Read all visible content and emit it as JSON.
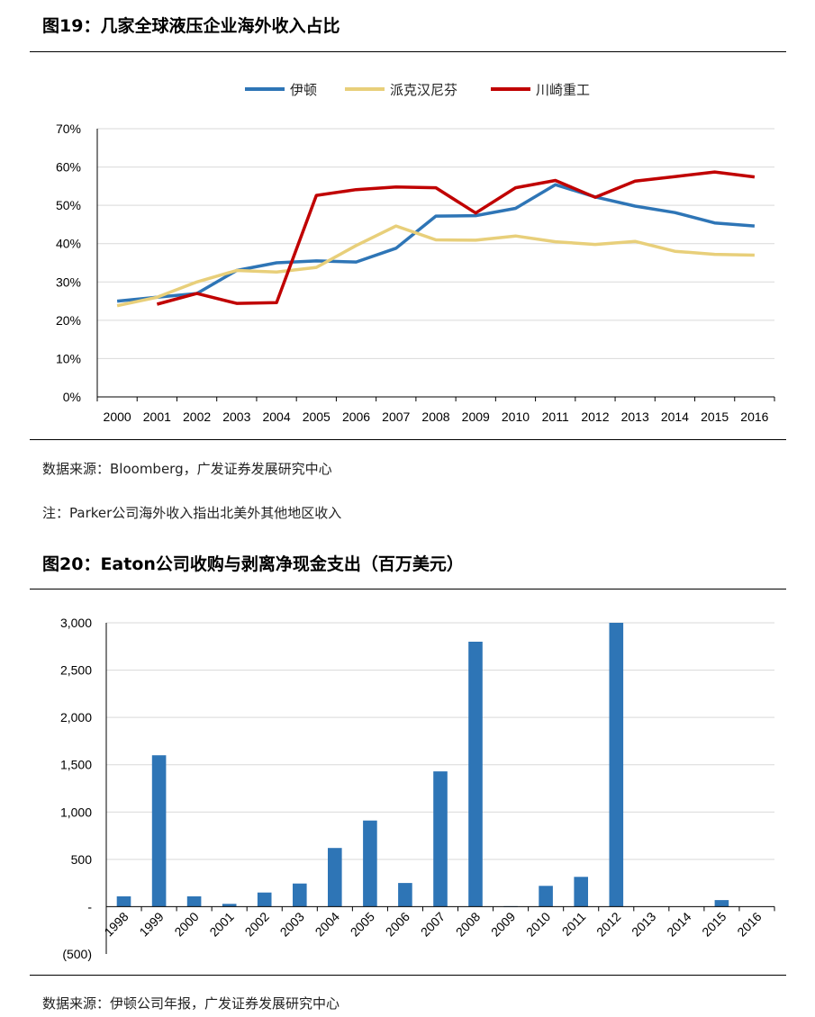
{
  "figure1": {
    "title": "图19：几家全球液压企业海外收入占比",
    "source": "数据来源：Bloomberg，广发证券发展研究中心",
    "note": "注：Parker公司海外收入指出北美外其他地区收入"
  },
  "figure2": {
    "title": "图20：Eaton公司收购与剥离净现金支出（百万美元）",
    "source": "数据来源：伊顿公司年报，广发证券发展研究中心"
  },
  "chart_data": [
    {
      "type": "line",
      "title": "",
      "x": [
        "2000",
        "2001",
        "2002",
        "2003",
        "2004",
        "2005",
        "2006",
        "2007",
        "2008",
        "2009",
        "2010",
        "2011",
        "2012",
        "2013",
        "2014",
        "2015",
        "2016"
      ],
      "ylim": [
        0,
        70
      ],
      "yticks": [
        "0%",
        "10%",
        "20%",
        "30%",
        "40%",
        "50%",
        "60%",
        "70%"
      ],
      "legend_position": "top",
      "grid": true,
      "series": [
        {
          "name": "伊顿",
          "color": "#2e75b6",
          "values": [
            25,
            26,
            27,
            33,
            35,
            35.5,
            35.2,
            38.8,
            47.2,
            47.3,
            49.2,
            55.4,
            52.2,
            49.8,
            48.1,
            45.4,
            44.6
          ]
        },
        {
          "name": "派克汉尼芬",
          "color": "#e8cf7a",
          "values": [
            23.8,
            26,
            30,
            33,
            32.6,
            33.8,
            39.5,
            44.6,
            41,
            40.9,
            42,
            40.5,
            39.8,
            40.6,
            38,
            37.2,
            37
          ]
        },
        {
          "name": "川崎重工",
          "color": "#c00000",
          "values": [
            null,
            24.2,
            27,
            24.4,
            24.6,
            52.6,
            54.1,
            54.8,
            54.6,
            48,
            54.6,
            56.5,
            52.1,
            56.3,
            57.5,
            58.7,
            57.4
          ]
        }
      ]
    },
    {
      "type": "bar",
      "title": "",
      "categories": [
        "1998",
        "1999",
        "2000",
        "2001",
        "2002",
        "2003",
        "2004",
        "2005",
        "2006",
        "2007",
        "2008",
        "2009",
        "2010",
        "2011",
        "2012",
        "2013",
        "2014",
        "2015",
        "2016"
      ],
      "values": [
        110,
        1600,
        110,
        30,
        150,
        245,
        620,
        910,
        250,
        1430,
        2800,
        5,
        220,
        315,
        3000,
        0,
        0,
        70,
        0
      ],
      "ylim": [
        -500,
        3000
      ],
      "yticks": [
        "(500)",
        "-",
        "500",
        "1,000",
        "1,500",
        "2,000",
        "2,500",
        "3,000"
      ],
      "color": "#2e75b6",
      "grid": true
    }
  ]
}
